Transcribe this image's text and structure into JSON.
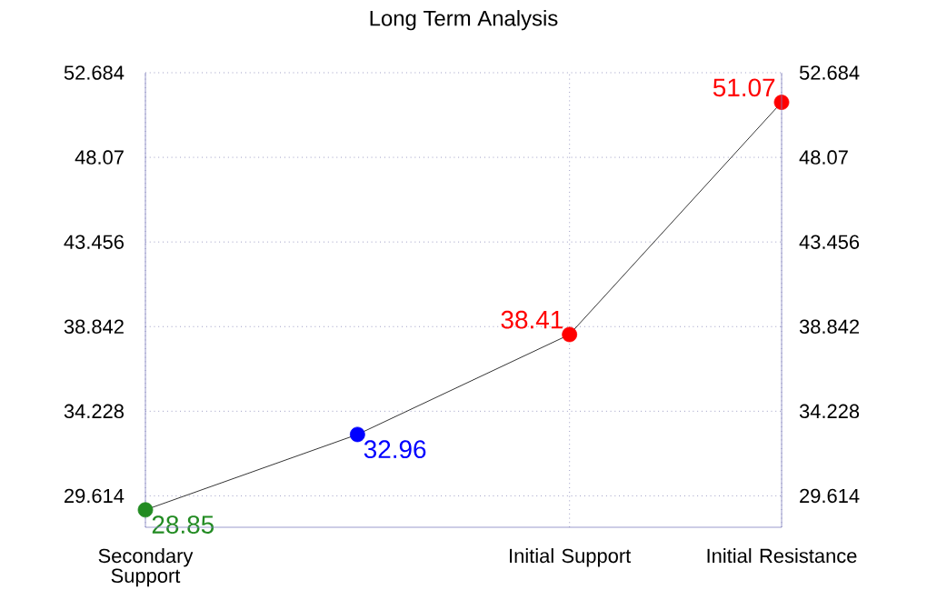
{
  "chart_data": {
    "type": "line",
    "title": "Long Term Analysis",
    "categories": [
      "Secondary Support",
      null,
      "Initial Support",
      "Initial Resistance"
    ],
    "ylim": [
      27.9,
      52.684
    ],
    "yticks": [
      29.614,
      34.228,
      38.842,
      43.456,
      48.07,
      52.684
    ],
    "y2lim": [
      27.9,
      52.684
    ],
    "y2ticks": [
      29.614,
      34.228,
      38.842,
      43.456,
      48.07,
      52.684
    ],
    "grid": true,
    "marker": "circle",
    "line_style": "solid",
    "series": [
      {
        "color": "#000000",
        "values": [
          28.85,
          32.96,
          38.41,
          51.07
        ],
        "colors": [
          "#228b22",
          "#0000ff",
          "#ff0000",
          "#ff0000"
        ],
        "value_labels": [
          "28.85",
          "32.96",
          "38.41",
          "51.07"
        ]
      }
    ]
  }
}
